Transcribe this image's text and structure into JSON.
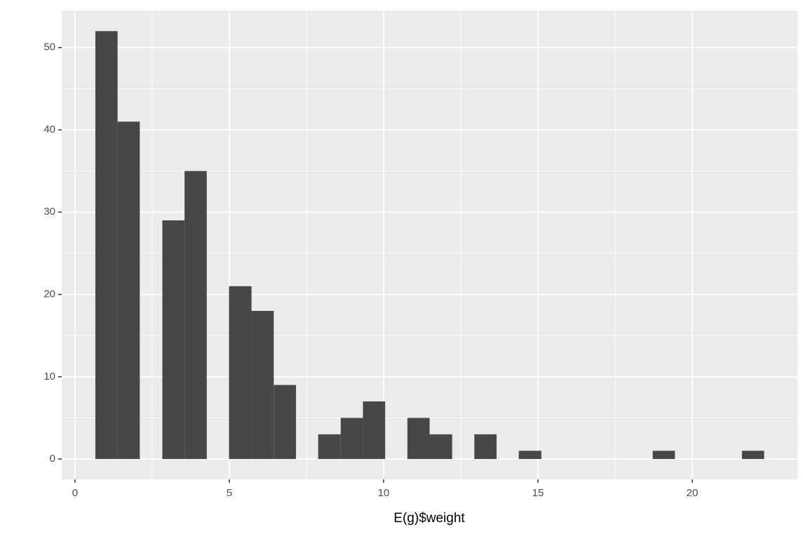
{
  "chart_data": {
    "type": "histogram",
    "x_label": "E(g)$weight",
    "bins": [
      0.66,
      1.38,
      2.1,
      2.83,
      3.55,
      4.27,
      4.99,
      5.72,
      6.44,
      7.16,
      7.88,
      8.61,
      9.33,
      10.05,
      10.77,
      11.49,
      12.22,
      12.94,
      13.66,
      14.38,
      15.11,
      15.83,
      16.55,
      17.27,
      17.99,
      18.72,
      19.44,
      20.16,
      20.88,
      21.61,
      22.33
    ],
    "values": [
      52,
      41,
      0,
      29,
      35,
      0,
      21,
      18,
      9,
      0,
      3,
      5,
      7,
      0,
      5,
      3,
      0,
      3,
      0,
      1,
      0,
      0,
      0,
      0,
      0,
      1,
      0,
      0,
      0,
      1
    ],
    "color": "#474747",
    "xlim": [
      -0.43,
      23.41
    ],
    "ylim": [
      -2.47,
      54.5
    ],
    "xticks": [
      0,
      5,
      10,
      15,
      20
    ],
    "yticks": [
      0,
      10,
      20,
      30,
      40,
      50
    ],
    "grid": true
  }
}
